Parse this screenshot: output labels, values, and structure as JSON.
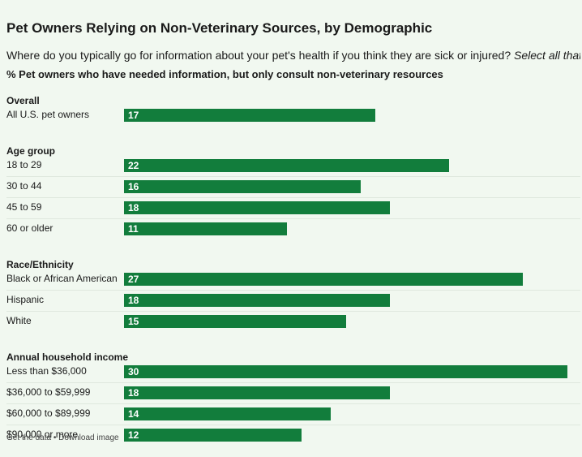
{
  "header": {
    "title": "Pet Owners Relying on Non-Veterinary Sources, by Demographic",
    "subtitle_main": "Where do you typically go for information about your pet's health if you think they are sick or injured? ",
    "subtitle_italic": "Select all that ap",
    "measure": "% Pet owners who have needed information, but only consult non-veterinary resources"
  },
  "footer": {
    "get_data": "Get the data",
    "separator": " • ",
    "download": "Download image"
  },
  "colors": {
    "bar": "#127d3c",
    "background": "#f1f8f0"
  },
  "chart_data": {
    "type": "bar",
    "orientation": "horizontal",
    "xlim": [
      0,
      30
    ],
    "grid": false,
    "groups": [
      {
        "name": "Overall",
        "categories": [
          "All U.S. pet owners"
        ],
        "values": [
          17
        ]
      },
      {
        "name": "Age group",
        "categories": [
          "18 to 29",
          "30 to 44",
          "45 to 59",
          "60 or older"
        ],
        "values": [
          22,
          16,
          18,
          11
        ]
      },
      {
        "name": "Race/Ethnicity",
        "categories": [
          "Black or African American",
          "Hispanic",
          "White"
        ],
        "values": [
          27,
          18,
          15
        ]
      },
      {
        "name": "Annual household income",
        "categories": [
          "Less than $36,000",
          "$36,000 to $59,999",
          "$60,000 to $89,999",
          "$90,000 or more"
        ],
        "values": [
          30,
          18,
          14,
          12
        ]
      }
    ]
  }
}
